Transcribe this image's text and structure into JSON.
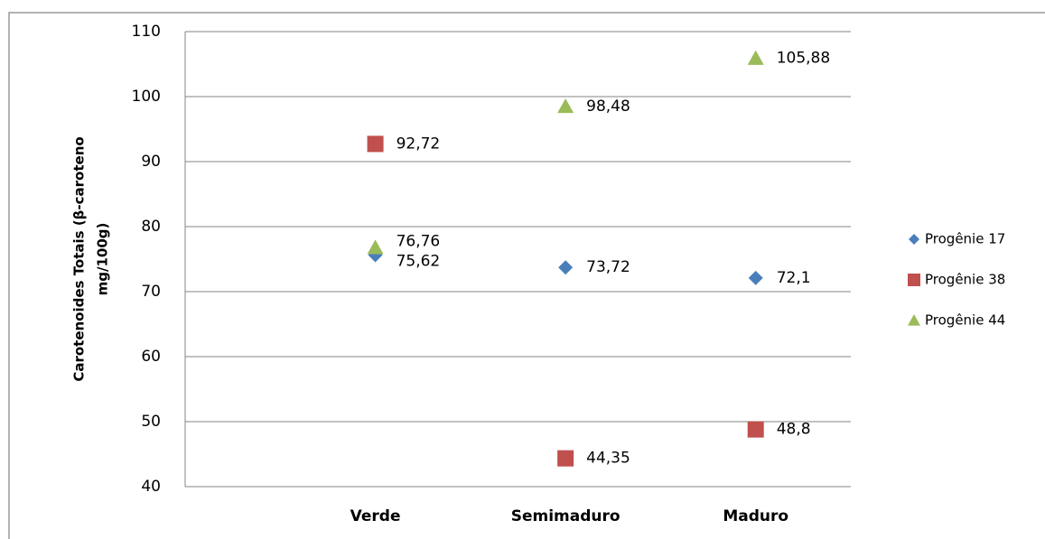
{
  "chart_data": {
    "type": "scatter",
    "ylabel_lines": [
      "Carotenoides Totais  (β-caroteno",
      "mg/100g)"
    ],
    "categories": [
      "Verde",
      "Semimaduro",
      "Maduro"
    ],
    "series": [
      {
        "name": "Progênie 17",
        "color": "#4a7ebb",
        "marker": "diamond",
        "values": [
          75.62,
          73.72,
          72.1
        ],
        "value_labels": [
          "75,62",
          "73,72",
          "72,1"
        ]
      },
      {
        "name": "Progênie 38",
        "color": "#c0504d",
        "marker": "square",
        "values": [
          92.72,
          44.35,
          48.8
        ],
        "value_labels": [
          "92,72",
          "44,35",
          "48,8"
        ]
      },
      {
        "name": "Progênie 44",
        "color": "#9bbb59",
        "marker": "triangle",
        "values": [
          76.76,
          98.48,
          105.88
        ],
        "value_labels": [
          "76,76",
          "98,48",
          "105,88"
        ]
      }
    ],
    "ylim": [
      40,
      110
    ],
    "yticks": [
      40,
      50,
      60,
      70,
      80,
      90,
      100,
      110
    ],
    "grid": true,
    "legend": "right"
  }
}
